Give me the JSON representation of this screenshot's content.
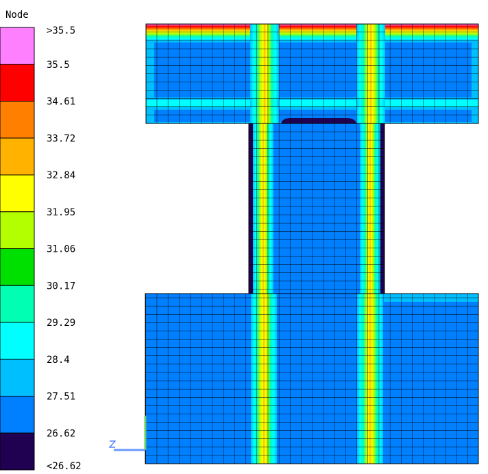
{
  "legend": {
    "title": "Node",
    "labels": [
      ">35.5",
      "35.5",
      "34.61",
      "33.72",
      "32.84",
      "31.95",
      "31.06",
      "30.17",
      "29.29",
      "28.4",
      "27.51",
      "26.62",
      "<26.62"
    ],
    "colors": [
      "#ff80ff",
      "#ff0000",
      "#ff8000",
      "#ffb300",
      "#ffff00",
      "#b3ff00",
      "#00e000",
      "#00ffb3",
      "#00ffff",
      "#00bfff",
      "#0080ff",
      "#200050"
    ]
  }
}
